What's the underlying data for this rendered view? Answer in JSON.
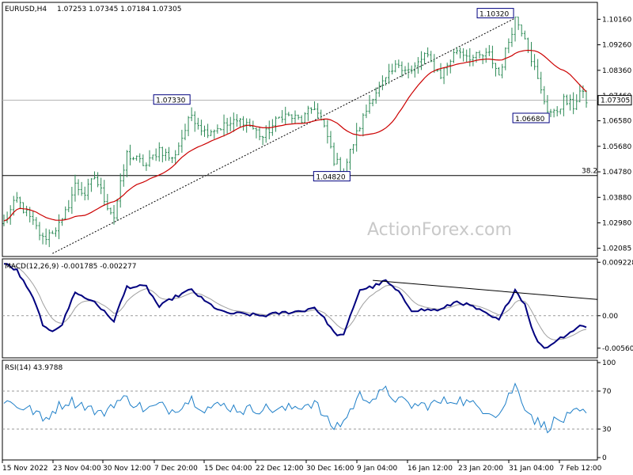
{
  "chart_data": [
    {
      "type": "candlestick",
      "title": "EURUSD,H4",
      "ohlc_label": "1.07253 1.07345 1.07184 1.07305",
      "ylim": [
        1.0185,
        1.107
      ],
      "y_ticks": [
        "1.10160",
        "1.09260",
        "1.08360",
        "1.07460",
        "1.06580",
        "1.05680",
        "1.04780",
        "1.03880",
        "1.02980",
        "1.02085"
      ],
      "last_price": "1.07305",
      "annotations": [
        {
          "text": "1.07330",
          "value": 1.0733,
          "bar": 58
        },
        {
          "text": "1.04820",
          "value": 1.0482,
          "bar": 105
        },
        {
          "text": "1.10320",
          "value": 1.1032,
          "bar": 158
        },
        {
          "text": "1.06680",
          "value": 1.0668,
          "bar": 170
        }
      ],
      "fib_label": "38.2",
      "fib_level": 1.0465,
      "trendline": {
        "from": [
          15,
          1.019
        ],
        "to": [
          158,
          1.102
        ]
      },
      "watermark": "ActionForex.com",
      "anchors": [
        [
          0,
          1.03
        ],
        [
          4,
          1.038
        ],
        [
          10,
          1.028
        ],
        [
          12,
          1.024
        ],
        [
          18,
          1.03
        ],
        [
          22,
          1.043
        ],
        [
          25,
          1.04
        ],
        [
          28,
          1.046
        ],
        [
          32,
          1.036
        ],
        [
          34,
          1.032
        ],
        [
          38,
          1.054
        ],
        [
          44,
          1.05
        ],
        [
          48,
          1.056
        ],
        [
          52,
          1.052
        ],
        [
          58,
          1.068
        ],
        [
          62,
          1.062
        ],
        [
          68,
          1.064
        ],
        [
          74,
          1.066
        ],
        [
          80,
          1.06
        ],
        [
          86,
          1.068
        ],
        [
          92,
          1.066
        ],
        [
          96,
          1.071
        ],
        [
          100,
          1.06
        ],
        [
          102,
          1.052
        ],
        [
          105,
          1.048
        ],
        [
          108,
          1.058
        ],
        [
          110,
          1.064
        ],
        [
          114,
          1.075
        ],
        [
          118,
          1.08
        ],
        [
          122,
          1.086
        ],
        [
          126,
          1.083
        ],
        [
          130,
          1.089
        ],
        [
          135,
          1.082
        ],
        [
          140,
          1.091
        ],
        [
          145,
          1.088
        ],
        [
          150,
          1.089
        ],
        [
          153,
          1.082
        ],
        [
          156,
          1.094
        ],
        [
          158,
          1.102
        ],
        [
          161,
          1.096
        ],
        [
          164,
          1.084
        ],
        [
          166,
          1.076
        ],
        [
          168,
          1.07
        ],
        [
          170,
          1.068
        ],
        [
          173,
          1.073
        ],
        [
          176,
          1.071
        ],
        [
          178,
          1.076
        ],
        [
          180,
          1.073
        ]
      ]
    },
    {
      "type": "line",
      "title": "MACD(12,26,9) -0.001785 -0.002277",
      "ylim": [
        -0.007,
        0.0094
      ],
      "y_ticks": [
        "0.009228",
        "0.00",
        "-0.005606"
      ],
      "anchors": [
        [
          0,
          0.009
        ],
        [
          4,
          0.0078
        ],
        [
          10,
          0.002
        ],
        [
          12,
          -0.002
        ],
        [
          15,
          -0.0025
        ],
        [
          18,
          -0.0015
        ],
        [
          22,
          0.0042
        ],
        [
          25,
          0.003
        ],
        [
          28,
          0.0025
        ],
        [
          32,
          0.0
        ],
        [
          34,
          -0.0008
        ],
        [
          38,
          0.005
        ],
        [
          44,
          0.005
        ],
        [
          48,
          0.0015
        ],
        [
          52,
          0.003
        ],
        [
          58,
          0.0045
        ],
        [
          62,
          0.0025
        ],
        [
          68,
          0.0005
        ],
        [
          74,
          0.0003
        ],
        [
          80,
          0.0
        ],
        [
          86,
          0.0005
        ],
        [
          92,
          0.0008
        ],
        [
          96,
          0.0015
        ],
        [
          100,
          -0.0012
        ],
        [
          102,
          -0.003
        ],
        [
          105,
          -0.0035
        ],
        [
          108,
          0.0015
        ],
        [
          110,
          0.0045
        ],
        [
          114,
          0.005
        ],
        [
          118,
          0.006
        ],
        [
          122,
          0.004
        ],
        [
          126,
          0.001
        ],
        [
          130,
          0.001
        ],
        [
          135,
          0.001
        ],
        [
          140,
          0.0025
        ],
        [
          145,
          0.0015
        ],
        [
          150,
          0.0
        ],
        [
          153,
          -0.0008
        ],
        [
          156,
          0.0025
        ],
        [
          158,
          0.0045
        ],
        [
          161,
          0.002
        ],
        [
          164,
          -0.0035
        ],
        [
          166,
          -0.0052
        ],
        [
          168,
          -0.0055
        ],
        [
          170,
          -0.0045
        ],
        [
          173,
          -0.0035
        ],
        [
          176,
          -0.0025
        ],
        [
          178,
          -0.0018
        ],
        [
          180,
          -0.0018
        ]
      ],
      "trendline": {
        "from": [
          114,
          0.0061
        ],
        "to": [
          180,
          0.0028
        ]
      },
      "zero_line": 0
    },
    {
      "type": "line",
      "title": "RSI(14) 43.9788",
      "ylim": [
        0,
        100
      ],
      "y_ticks": [
        100,
        70,
        30,
        0
      ],
      "levels": [
        70,
        30
      ],
      "anchors": [
        [
          0,
          60
        ],
        [
          4,
          55
        ],
        [
          10,
          48
        ],
        [
          12,
          38
        ],
        [
          16,
          52
        ],
        [
          20,
          60
        ],
        [
          25,
          55
        ],
        [
          30,
          45
        ],
        [
          34,
          58
        ],
        [
          38,
          62
        ],
        [
          44,
          50
        ],
        [
          48,
          55
        ],
        [
          52,
          50
        ],
        [
          58,
          62
        ],
        [
          62,
          52
        ],
        [
          68,
          55
        ],
        [
          74,
          50
        ],
        [
          80,
          52
        ],
        [
          86,
          50
        ],
        [
          92,
          55
        ],
        [
          96,
          58
        ],
        [
          100,
          38
        ],
        [
          102,
          32
        ],
        [
          105,
          38
        ],
        [
          108,
          55
        ],
        [
          110,
          65
        ],
        [
          114,
          62
        ],
        [
          118,
          70
        ],
        [
          122,
          60
        ],
        [
          126,
          55
        ],
        [
          130,
          55
        ],
        [
          135,
          58
        ],
        [
          140,
          62
        ],
        [
          145,
          55
        ],
        [
          150,
          50
        ],
        [
          153,
          45
        ],
        [
          156,
          65
        ],
        [
          158,
          76
        ],
        [
          161,
          55
        ],
        [
          164,
          40
        ],
        [
          166,
          35
        ],
        [
          168,
          32
        ],
        [
          170,
          38
        ],
        [
          173,
          40
        ],
        [
          176,
          45
        ],
        [
          178,
          48
        ],
        [
          180,
          44
        ]
      ]
    }
  ],
  "x_labels": [
    "15 Nov 2022",
    "23 Nov 04:00",
    "30 Nov 12:00",
    "7 Dec 20:00",
    "15 Dec 04:00",
    "22 Dec 12:00",
    "30 Dec 16:00",
    "9 Jan 04:00",
    "16 Jan 12:00",
    "23 Jan 20:00",
    "31 Jan 04:00",
    "7 Feb 12:00"
  ],
  "colors": {
    "candle": "#2e8b57",
    "ma": "#cc0000",
    "macd": "#00007f",
    "signal": "#a0a0a0",
    "rsi": "#1e7fc8"
  }
}
